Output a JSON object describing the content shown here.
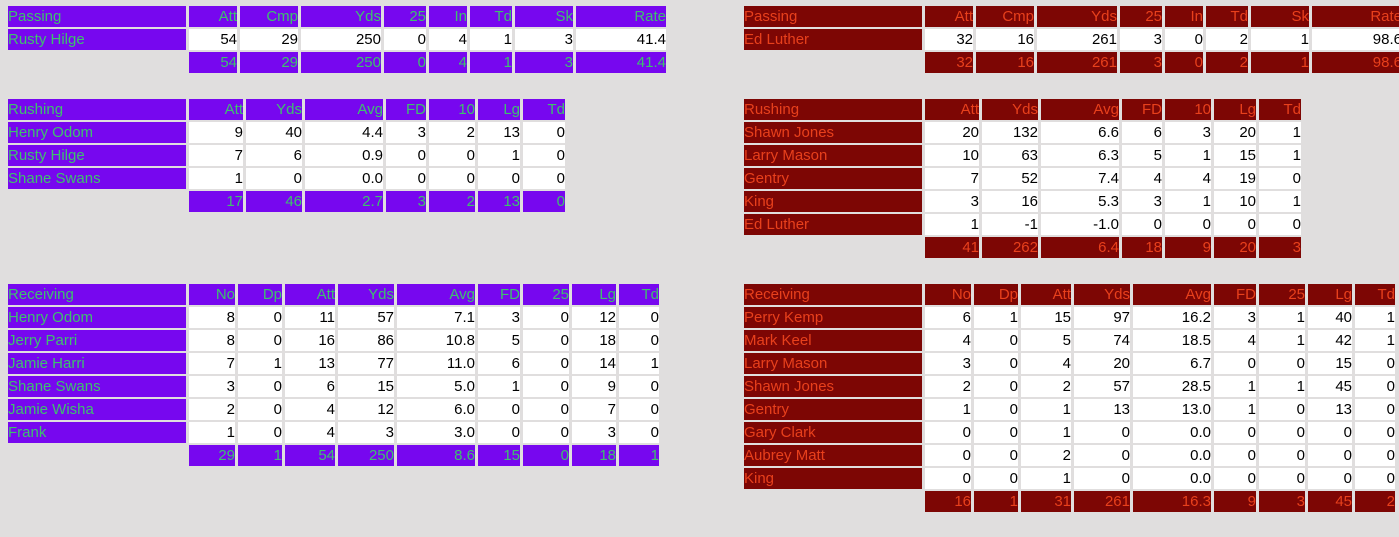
{
  "page": {
    "background_color": "#E0DEDE",
    "data_cell_bg": "#FFFFFF",
    "data_cell_text": "#000000"
  },
  "teams": [
    {
      "side": "left",
      "theme": "purple",
      "colors": {
        "header_bg": "#7707EF",
        "header_text": "#3EC06E"
      },
      "sections": [
        {
          "id": "passing",
          "label": "Passing",
          "columns": [
            "Att",
            "Cmp",
            "Yds",
            "25",
            "In",
            "Td",
            "Sk",
            "Rate"
          ],
          "rows": [
            {
              "name": "Rusty Hilge",
              "values": [
                "54",
                "29",
                "250",
                "0",
                "4",
                "1",
                "3",
                "41.4"
              ]
            }
          ],
          "totals": [
            "54",
            "29",
            "250",
            "0",
            "4",
            "1",
            "3",
            "41.4"
          ]
        },
        {
          "id": "rushing",
          "label": "Rushing",
          "columns": [
            "Att",
            "Yds",
            "Avg",
            "FD",
            "10",
            "Lg",
            "Td"
          ],
          "rows": [
            {
              "name": "Henry Odom",
              "values": [
                "9",
                "40",
                "4.4",
                "3",
                "2",
                "13",
                "0"
              ]
            },
            {
              "name": "Rusty Hilge",
              "values": [
                "7",
                "6",
                "0.9",
                "0",
                "0",
                "1",
                "0"
              ]
            },
            {
              "name": "Shane Swans",
              "values": [
                "1",
                "0",
                "0.0",
                "0",
                "0",
                "0",
                "0"
              ]
            }
          ],
          "totals": [
            "17",
            "46",
            "2.7",
            "3",
            "2",
            "13",
            "0"
          ]
        },
        {
          "id": "receiving",
          "label": "Receiving",
          "columns": [
            "No",
            "Dp",
            "Att",
            "Yds",
            "Avg",
            "FD",
            "25",
            "Lg",
            "Td"
          ],
          "rows": [
            {
              "name": "Henry Odom",
              "values": [
                "8",
                "0",
                "11",
                "57",
                "7.1",
                "3",
                "0",
                "12",
                "0"
              ]
            },
            {
              "name": "Jerry Parri",
              "values": [
                "8",
                "0",
                "16",
                "86",
                "10.8",
                "5",
                "0",
                "18",
                "0"
              ]
            },
            {
              "name": "Jamie Harri",
              "values": [
                "7",
                "1",
                "13",
                "77",
                "11.0",
                "6",
                "0",
                "14",
                "1"
              ]
            },
            {
              "name": "Shane Swans",
              "values": [
                "3",
                "0",
                "6",
                "15",
                "5.0",
                "1",
                "0",
                "9",
                "0"
              ]
            },
            {
              "name": "Jamie Wisha",
              "values": [
                "2",
                "0",
                "4",
                "12",
                "6.0",
                "0",
                "0",
                "7",
                "0"
              ]
            },
            {
              "name": "Frank",
              "values": [
                "1",
                "0",
                "4",
                "3",
                "3.0",
                "0",
                "0",
                "3",
                "0"
              ]
            }
          ],
          "totals": [
            "29",
            "1",
            "54",
            "250",
            "8.6",
            "15",
            "0",
            "18",
            "1"
          ]
        }
      ]
    },
    {
      "side": "right",
      "theme": "darkred",
      "colors": {
        "header_bg": "#7D0604",
        "header_text": "#E8401C"
      },
      "sections": [
        {
          "id": "passing",
          "label": "Passing",
          "columns": [
            "Att",
            "Cmp",
            "Yds",
            "25",
            "In",
            "Td",
            "Sk",
            "Rate"
          ],
          "rows": [
            {
              "name": "Ed Luther",
              "values": [
                "32",
                "16",
                "261",
                "3",
                "0",
                "2",
                "1",
                "98.6"
              ]
            }
          ],
          "totals": [
            "32",
            "16",
            "261",
            "3",
            "0",
            "2",
            "1",
            "98.6"
          ]
        },
        {
          "id": "rushing",
          "label": "Rushing",
          "columns": [
            "Att",
            "Yds",
            "Avg",
            "FD",
            "10",
            "Lg",
            "Td"
          ],
          "rows": [
            {
              "name": "Shawn Jones",
              "values": [
                "20",
                "132",
                "6.6",
                "6",
                "3",
                "20",
                "1"
              ]
            },
            {
              "name": "Larry Mason",
              "values": [
                "10",
                "63",
                "6.3",
                "5",
                "1",
                "15",
                "1"
              ]
            },
            {
              "name": "Gentry",
              "values": [
                "7",
                "52",
                "7.4",
                "4",
                "4",
                "19",
                "0"
              ]
            },
            {
              "name": "King",
              "values": [
                "3",
                "16",
                "5.3",
                "3",
                "1",
                "10",
                "1"
              ]
            },
            {
              "name": "Ed Luther",
              "values": [
                "1",
                "-1",
                "-1.0",
                "0",
                "0",
                "0",
                "0"
              ]
            }
          ],
          "totals": [
            "41",
            "262",
            "6.4",
            "18",
            "9",
            "20",
            "3"
          ]
        },
        {
          "id": "receiving",
          "label": "Receiving",
          "columns": [
            "No",
            "Dp",
            "Att",
            "Yds",
            "Avg",
            "FD",
            "25",
            "Lg",
            "Td"
          ],
          "rows": [
            {
              "name": "Perry Kemp",
              "values": [
                "6",
                "1",
                "15",
                "97",
                "16.2",
                "3",
                "1",
                "40",
                "1"
              ]
            },
            {
              "name": "Mark Keel",
              "values": [
                "4",
                "0",
                "5",
                "74",
                "18.5",
                "4",
                "1",
                "42",
                "1"
              ]
            },
            {
              "name": "Larry Mason",
              "values": [
                "3",
                "0",
                "4",
                "20",
                "6.7",
                "0",
                "0",
                "15",
                "0"
              ]
            },
            {
              "name": "Shawn Jones",
              "values": [
                "2",
                "0",
                "2",
                "57",
                "28.5",
                "1",
                "1",
                "45",
                "0"
              ]
            },
            {
              "name": "Gentry",
              "values": [
                "1",
                "0",
                "1",
                "13",
                "13.0",
                "1",
                "0",
                "13",
                "0"
              ]
            },
            {
              "name": "Gary Clark",
              "values": [
                "0",
                "0",
                "1",
                "0",
                "0.0",
                "0",
                "0",
                "0",
                "0"
              ]
            },
            {
              "name": "Aubrey Matt",
              "values": [
                "0",
                "0",
                "2",
                "0",
                "0.0",
                "0",
                "0",
                "0",
                "0"
              ]
            },
            {
              "name": "King",
              "values": [
                "0",
                "0",
                "1",
                "0",
                "0.0",
                "0",
                "0",
                "0",
                "0"
              ]
            }
          ],
          "totals": [
            "16",
            "1",
            "31",
            "261",
            "16.3",
            "9",
            "3",
            "45",
            "2"
          ]
        }
      ]
    }
  ]
}
